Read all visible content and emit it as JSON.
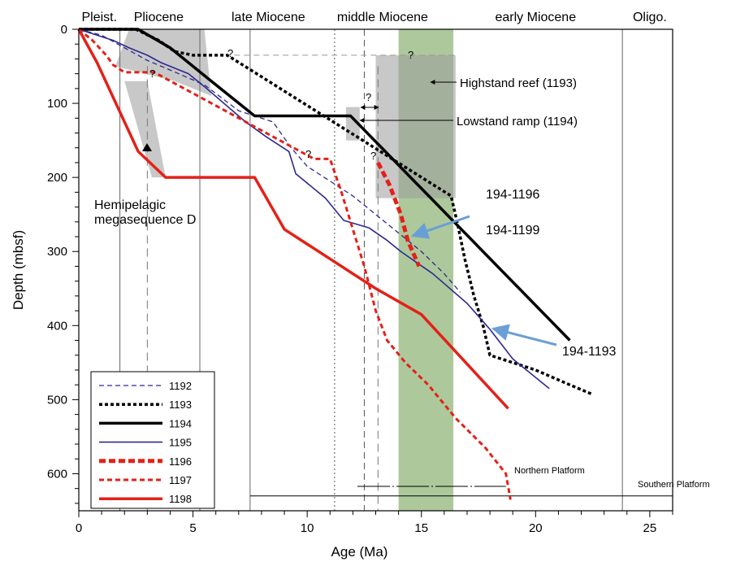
{
  "chart_data": {
    "type": "line",
    "xlabel": "Age (Ma)",
    "ylabel": "Depth (mbsf)",
    "xlim": [
      0,
      26
    ],
    "ylim": [
      0,
      650
    ],
    "xticks": [
      "0",
      "5",
      "10",
      "15",
      "20",
      "25"
    ],
    "yticks": [
      "0",
      "100",
      "200",
      "300",
      "400",
      "500",
      "600"
    ],
    "epochs": [
      {
        "label": "Pleist.",
        "center": 0.9
      },
      {
        "label": "Pliocene",
        "center": 3.5
      },
      {
        "label": "late Miocene",
        "center": 8.3
      },
      {
        "label": "middle Miocene",
        "center": 13.3
      },
      {
        "label": "early Miocene",
        "center": 20.0
      },
      {
        "label": "Oligo.",
        "center": 25.0
      }
    ],
    "boundaries_solid": [
      1.8,
      5.3,
      7.5,
      23.8
    ],
    "boundaries_dotted": [
      11.2
    ],
    "boundaries_dashed": [
      12.5
    ],
    "hiatus_dashed": [
      3.0,
      13.1
    ],
    "green_band": [
      14.0,
      16.4
    ],
    "gray_regions": [
      {
        "points": [
          [
            2.2,
            0
          ],
          [
            5.5,
            0
          ],
          [
            5.8,
            90
          ],
          [
            4.2,
            70
          ],
          [
            1.6,
            50
          ]
        ]
      },
      {
        "points": [
          [
            2.0,
            70
          ],
          [
            3.0,
            70
          ],
          [
            3.8,
            200
          ],
          [
            3.2,
            200
          ]
        ]
      },
      {
        "points": [
          [
            11.7,
            105
          ],
          [
            12.3,
            105
          ],
          [
            12.3,
            150
          ],
          [
            11.7,
            150
          ]
        ]
      },
      {
        "points": [
          [
            13.0,
            35
          ],
          [
            16.5,
            35
          ],
          [
            16.5,
            228
          ],
          [
            13.0,
            228
          ]
        ]
      }
    ],
    "annotations": {
      "hemipelagic_line1": "Hemipelagic",
      "hemipelagic_line2": "megasequence D",
      "highstand": "Highstand reef (1193)",
      "lowstand": "Lowstand ramp (1194)",
      "q": "?",
      "callout_1196": "194-1196",
      "callout_1199": "194-1199",
      "callout_1193": "194-1193",
      "northern_platform": "Northern Platform",
      "southern_platform": "Southern Platform"
    },
    "series": [
      {
        "name": "1192",
        "color": "#2d2890",
        "style": "dashed-thin",
        "x": [
          0,
          1.0,
          2.0,
          3.0,
          4.0,
          5.5,
          7.0,
          8.5,
          9.3,
          10.0,
          11.0,
          12.0,
          13.0,
          14.0,
          15.0,
          16.0,
          16.7
        ],
        "y": [
          0,
          8,
          25,
          42,
          55,
          75,
          110,
          125,
          160,
          185,
          205,
          225,
          250,
          275,
          300,
          330,
          355
        ]
      },
      {
        "name": "1193",
        "color": "#000000",
        "style": "dotted-thick",
        "x": [
          0,
          2.5,
          3.5,
          4.2,
          5.0,
          6.0,
          6.5,
          16.3,
          16.6,
          16.9,
          17.3,
          17.7,
          18.0,
          20.0,
          21.5,
          22.5
        ],
        "y": [
          0,
          0,
          15,
          30,
          35,
          35,
          35,
          225,
          265,
          310,
          360,
          400,
          440,
          460,
          480,
          493
        ]
      },
      {
        "name": "1194",
        "color": "#000000",
        "style": "solid-thick",
        "x": [
          0,
          2.6,
          4.0,
          5.6,
          7.7,
          11.9,
          21.5
        ],
        "y": [
          0,
          0,
          25,
          65,
          117,
          117,
          420
        ]
      },
      {
        "name": "1195",
        "color": "#2d2890",
        "style": "solid-thin",
        "x": [
          0,
          0.8,
          1.5,
          2.2,
          3.0,
          3.6,
          4.8,
          5.6,
          7.3,
          8.2,
          9.2,
          9.5,
          10.8,
          11.6,
          12.7,
          13.5,
          14.1,
          15.5,
          17.0,
          18.0,
          19.0,
          20.6
        ],
        "y": [
          0,
          8,
          15,
          25,
          35,
          45,
          60,
          80,
          125,
          145,
          165,
          195,
          228,
          258,
          268,
          285,
          300,
          330,
          370,
          405,
          445,
          485
        ]
      },
      {
        "name": "1196",
        "color": "#e32119",
        "style": "dashed-thick",
        "x": [
          13.1,
          13.6,
          14.1,
          14.4,
          14.9
        ],
        "y": [
          180,
          210,
          250,
          285,
          320
        ]
      },
      {
        "name": "1197",
        "color": "#e32119",
        "style": "dashed-medium",
        "x": [
          0,
          0.6,
          1.2,
          1.5,
          2.0,
          3.3,
          10.3,
          11.0,
          11.5,
          12.0,
          12.5,
          13.0,
          13.5,
          14.3,
          15.3,
          16.5,
          17.8,
          18.7,
          18.9
        ],
        "y": [
          0,
          15,
          35,
          48,
          58,
          58,
          175,
          175,
          220,
          270,
          320,
          380,
          420,
          450,
          480,
          525,
          565,
          600,
          635
        ]
      },
      {
        "name": "1198",
        "color": "#e32119",
        "style": "solid-thick",
        "x": [
          0,
          0.8,
          2.6,
          3.8,
          7.7,
          9.0,
          11.0,
          13.0,
          15.0,
          18.8
        ],
        "y": [
          0,
          45,
          165,
          200,
          200,
          270,
          310,
          350,
          385,
          512
        ]
      }
    ],
    "legend": {
      "entries": [
        "1192",
        "1193",
        "1194",
        "1195",
        "1196",
        "1197",
        "1198"
      ],
      "placement": "bottom-left"
    },
    "platforms": [
      {
        "label": "Northern Platform",
        "x_start": 12.2,
        "x_end": 18.7,
        "y": 617
      },
      {
        "label": "Southern Platform",
        "x_start": 7.5,
        "x_end": 26,
        "y": 630
      }
    ],
    "grid": false
  }
}
